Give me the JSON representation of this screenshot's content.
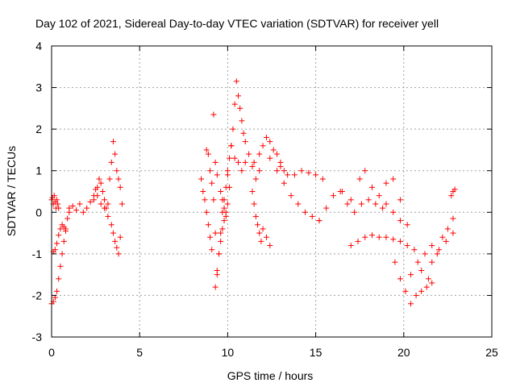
{
  "chart_data": {
    "type": "scatter",
    "title": "Day 102 of 2021, Sidereal Day-to-day VTEC variation (SDTVAR) for receiver yell",
    "xlabel": "GPS time / hours",
    "ylabel": "SDTVAR / TECUs",
    "xlim": [
      0,
      25
    ],
    "ylim": [
      -3,
      4
    ],
    "xticks": [
      "0",
      "5",
      "10",
      "15",
      "20",
      "25"
    ],
    "yticks": [
      "-3",
      "-2",
      "-1",
      "0",
      "1",
      "2",
      "3",
      "4"
    ],
    "grid": true,
    "marker": "+",
    "color": "#ff0000",
    "series": [
      {
        "name": "SDTVAR",
        "segments": [
          {
            "x": [
              0.0,
              0.05,
              0.1,
              0.15,
              0.2,
              0.25,
              0.3,
              0.35,
              0.4
            ],
            "y": [
              0.3,
              0.35,
              0.2,
              0.4,
              0.25,
              0.1,
              0.3,
              0.2,
              0.1
            ]
          },
          {
            "x": [
              0.0,
              0.1,
              0.2,
              0.3,
              0.4,
              0.5,
              0.6,
              0.7,
              0.8,
              0.9,
              1.0
            ],
            "y": [
              -2.2,
              -2.15,
              -2.05,
              -1.9,
              -1.6,
              -1.3,
              -1.0,
              -0.7,
              -0.4,
              -0.15,
              0.0
            ]
          },
          {
            "x": [
              0.1,
              0.2,
              0.3,
              0.4,
              0.5,
              0.6,
              0.7,
              0.8
            ],
            "y": [
              -0.95,
              -0.9,
              -0.75,
              -0.55,
              -0.4,
              -0.3,
              -0.35,
              -0.45
            ]
          },
          {
            "x": [
              1.0,
              1.2,
              1.4,
              1.6,
              1.8,
              2.0,
              2.2,
              2.4,
              2.6,
              2.8,
              3.0
            ],
            "y": [
              0.1,
              0.15,
              0.05,
              0.2,
              0.0,
              0.1,
              0.25,
              0.3,
              0.4,
              0.2,
              0.1
            ]
          },
          {
            "x": [
              2.4,
              2.5,
              2.6,
              2.7,
              2.8,
              2.9,
              3.0,
              3.1,
              3.2
            ],
            "y": [
              0.4,
              0.55,
              0.6,
              0.8,
              0.7,
              0.5,
              0.3,
              0.1,
              -0.1
            ]
          },
          {
            "x": [
              3.2,
              3.3,
              3.4,
              3.5,
              3.6,
              3.7,
              3.8,
              3.9
            ],
            "y": [
              0.2,
              0.8,
              1.2,
              1.7,
              1.4,
              1.0,
              0.8,
              0.6
            ]
          },
          {
            "x": [
              3.4,
              3.5,
              3.6,
              3.7,
              3.8,
              3.9,
              4.0
            ],
            "y": [
              -0.3,
              -0.5,
              -0.7,
              -0.85,
              -1.0,
              -0.6,
              0.2
            ]
          },
          {
            "x": [
              8.5,
              8.6,
              8.7,
              8.8,
              8.9,
              9.0,
              9.1
            ],
            "y": [
              0.8,
              0.5,
              0.3,
              0.0,
              -0.3,
              -0.6,
              -0.9
            ]
          },
          {
            "x": [
              8.8,
              8.9,
              9.0,
              9.1,
              9.2,
              9.3,
              9.4
            ],
            "y": [
              1.5,
              1.4,
              1.0,
              0.7,
              0.3,
              -0.5,
              -1.4
            ]
          },
          {
            "x": [
              9.3,
              9.4,
              9.5,
              9.6,
              9.7,
              9.8,
              9.9,
              10.0
            ],
            "y": [
              -1.8,
              -1.5,
              -1.0,
              -0.5,
              0.0,
              0.3,
              0.6,
              0.9
            ]
          },
          {
            "x": [
              9.6,
              9.7,
              9.8,
              9.9,
              10.0,
              10.1
            ],
            "y": [
              0.5,
              0.3,
              0.1,
              -0.1,
              0.2,
              0.6
            ]
          },
          {
            "x": [
              9.5,
              9.6,
              9.7,
              9.8,
              9.9
            ],
            "y": [
              -1.0,
              -0.7,
              -0.4,
              -0.2,
              0.0
            ]
          },
          {
            "x": [
              9.2,
              9.3,
              9.4
            ],
            "y": [
              2.35,
              1.2,
              0.9
            ]
          },
          {
            "x": [
              10.0,
              10.1,
              10.2,
              10.3,
              10.4,
              10.5,
              10.6,
              10.7,
              10.8,
              10.9,
              11.0
            ],
            "y": [
              1.0,
              1.3,
              1.6,
              2.0,
              2.6,
              3.15,
              2.8,
              2.5,
              2.2,
              1.9,
              1.7
            ]
          },
          {
            "x": [
              10.2,
              10.4,
              10.6,
              10.8,
              11.0,
              11.2,
              11.4,
              11.6,
              11.8
            ],
            "y": [
              1.6,
              1.3,
              1.2,
              1.0,
              1.2,
              1.4,
              1.1,
              0.8,
              1.0
            ]
          },
          {
            "x": [
              11.4,
              11.5,
              11.6,
              11.7,
              11.8,
              11.9
            ],
            "y": [
              0.5,
              0.2,
              -0.1,
              -0.3,
              -0.5,
              -0.7
            ]
          },
          {
            "x": [
              11.5,
              11.8,
              12.0,
              12.2,
              12.4,
              12.6,
              12.8,
              13.0,
              13.2
            ],
            "y": [
              1.2,
              1.4,
              1.6,
              1.8,
              1.7,
              1.5,
              1.4,
              1.2,
              1.0
            ]
          },
          {
            "x": [
              12.0,
              12.2,
              12.4
            ],
            "y": [
              -0.4,
              -0.6,
              -0.8
            ]
          },
          {
            "x": [
              12.4,
              12.8,
              13.2,
              13.6,
              14.0,
              14.4,
              14.8,
              15.2
            ],
            "y": [
              1.3,
              1.0,
              0.7,
              0.4,
              0.2,
              0.0,
              -0.1,
              -0.2
            ]
          },
          {
            "x": [
              13.0,
              13.4,
              13.8,
              14.2,
              14.6,
              15.0,
              15.4
            ],
            "y": [
              1.1,
              0.9,
              0.9,
              1.0,
              0.95,
              0.9,
              0.8
            ]
          },
          {
            "x": [
              15.2,
              15.6,
              16.0,
              16.4,
              16.8,
              17.2,
              17.6,
              18.0,
              18.4,
              18.8
            ],
            "y": [
              -0.2,
              0.1,
              0.4,
              0.5,
              0.2,
              0.0,
              0.2,
              0.3,
              0.2,
              0.1
            ]
          },
          {
            "x": [
              16.5,
              17.0,
              17.5,
              17.8,
              18.2,
              18.6,
              19.0,
              19.4,
              19.8
            ],
            "y": [
              0.5,
              0.3,
              0.8,
              1.0,
              0.6,
              0.4,
              0.2,
              0.0,
              -0.2
            ]
          },
          {
            "x": [
              17.0,
              17.4,
              17.8,
              18.2,
              18.6,
              19.0,
              19.4,
              19.8,
              20.2
            ],
            "y": [
              -0.8,
              -0.7,
              -0.6,
              -0.55,
              -0.6,
              -0.6,
              -0.65,
              -0.7,
              -0.8
            ]
          },
          {
            "x": [
              19.0,
              19.4,
              19.8,
              20.2,
              20.6,
              21.0,
              21.4
            ],
            "y": [
              0.7,
              0.8,
              0.3,
              -0.3,
              -0.9,
              -1.4,
              -1.6
            ]
          },
          {
            "x": [
              19.5,
              19.8,
              20.1,
              20.4,
              20.7,
              21.0,
              21.3,
              21.6
            ],
            "y": [
              -1.2,
              -1.6,
              -1.9,
              -2.2,
              -2.0,
              -1.9,
              -1.8,
              -1.7
            ]
          },
          {
            "x": [
              20.4,
              20.8,
              21.2,
              21.6,
              22.0,
              22.4,
              22.8
            ],
            "y": [
              -1.5,
              -1.2,
              -1.0,
              -0.8,
              -0.9,
              -0.7,
              -0.5
            ]
          },
          {
            "x": [
              21.6,
              21.9,
              22.2,
              22.5,
              22.8
            ],
            "y": [
              -1.2,
              -1.0,
              -0.6,
              -0.4,
              -0.15
            ]
          },
          {
            "x": [
              22.7,
              22.8,
              22.9
            ],
            "y": [
              0.4,
              0.5,
              0.55
            ]
          }
        ]
      }
    ]
  }
}
